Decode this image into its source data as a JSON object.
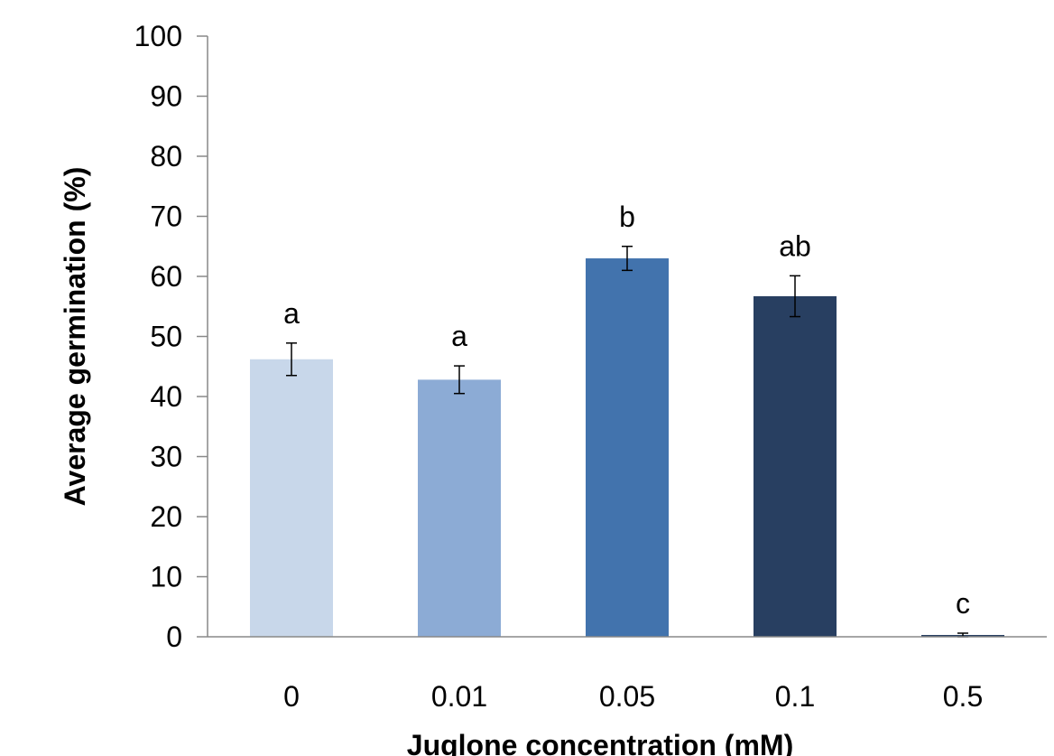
{
  "chart_data": {
    "type": "bar",
    "title": "",
    "xlabel": "Juglone concentration (mM)",
    "ylabel": "Average germination (%)",
    "categories": [
      "0",
      "0.01",
      "0.05",
      "0.1",
      "0.5"
    ],
    "values": [
      46.2,
      42.8,
      63.0,
      56.7,
      0.3
    ],
    "errors": [
      2.7,
      2.3,
      2.0,
      3.4,
      0.3
    ],
    "significance_labels": [
      "a",
      "a",
      "b",
      "ab",
      "c"
    ],
    "bar_colors": [
      "#C8D7EA",
      "#8CABD5",
      "#4273AD",
      "#283F61",
      "#283F61"
    ],
    "ylim": [
      0,
      100
    ],
    "yticks": [
      "0",
      "10",
      "20",
      "30",
      "40",
      "50",
      "60",
      "70",
      "80",
      "90",
      "100"
    ],
    "grid": false,
    "legend": "none"
  }
}
